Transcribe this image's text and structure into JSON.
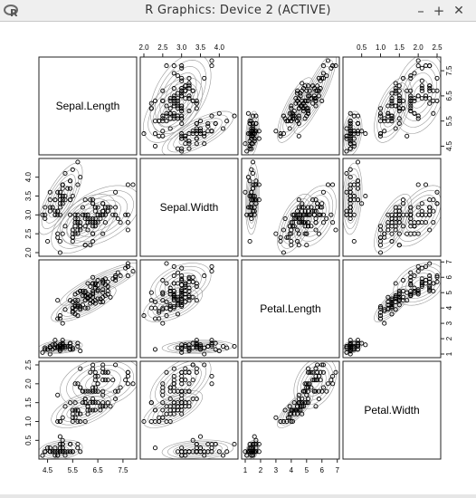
{
  "window": {
    "title": "R Graphics: Device 2 (ACTIVE)",
    "app_icon": "r-logo-icon",
    "buttons": {
      "minimize": "–",
      "maximize": "+",
      "close": "✕"
    }
  },
  "chart_data": {
    "type": "scatter",
    "plot_kind": "scatterplot matrix with bivariate density contours",
    "variables": [
      "Sepal.Length",
      "Sepal.Width",
      "Petal.Length",
      "Petal.Width"
    ],
    "ranges": {
      "Sepal.Length": [
        4.3,
        7.9
      ],
      "Sepal.Width": [
        2.0,
        4.4
      ],
      "Petal.Length": [
        1.0,
        6.9
      ],
      "Petal.Width": [
        0.1,
        2.5
      ]
    },
    "ticks": {
      "Sepal.Length": {
        "top": [
          {
            "v": 4.5,
            "t": "4.5"
          },
          {
            "v": 5.5,
            "t": "5.5"
          },
          {
            "v": 6.5,
            "t": "6.5"
          },
          {
            "v": 7.5,
            "t": "7.5"
          }
        ],
        "bottom": [
          {
            "v": 4.5,
            "t": "4.5"
          },
          {
            "v": 5.5,
            "t": "5.5"
          },
          {
            "v": 6.5,
            "t": "6.5"
          },
          {
            "v": 7.5,
            "t": "7.5"
          }
        ]
      },
      "Sepal.Width": {
        "top": [
          {
            "v": 2.0,
            "t": "2.0"
          },
          {
            "v": 2.5,
            "t": "2.5"
          },
          {
            "v": 3.0,
            "t": "3.0"
          },
          {
            "v": 3.5,
            "t": "3.5"
          },
          {
            "v": 4.0,
            "t": "4.0"
          }
        ],
        "left": [
          {
            "v": 2.0,
            "t": "2.0"
          },
          {
            "v": 2.5,
            "t": "2.5"
          },
          {
            "v": 3.0,
            "t": "3.0"
          },
          {
            "v": 3.5,
            "t": "3.5"
          },
          {
            "v": 4.0,
            "t": "4.0"
          }
        ]
      },
      "Petal.Length": {
        "bottom": [
          {
            "v": 1,
            "t": "1"
          },
          {
            "v": 2,
            "t": "2"
          },
          {
            "v": 3,
            "t": "3"
          },
          {
            "v": 4,
            "t": "4"
          },
          {
            "v": 5,
            "t": "5"
          },
          {
            "v": 6,
            "t": "6"
          },
          {
            "v": 7,
            "t": "7"
          }
        ],
        "right": [
          {
            "v": 1,
            "t": "1"
          },
          {
            "v": 2,
            "t": "2"
          },
          {
            "v": 3,
            "t": "3"
          },
          {
            "v": 4,
            "t": "4"
          },
          {
            "v": 5,
            "t": "5"
          },
          {
            "v": 6,
            "t": "6"
          },
          {
            "v": 7,
            "t": "7"
          }
        ]
      },
      "Petal.Width": {
        "top": [
          {
            "v": 0.5,
            "t": "0.5"
          },
          {
            "v": 1.0,
            "t": "1.0"
          },
          {
            "v": 1.5,
            "t": "1.5"
          },
          {
            "v": 2.0,
            "t": "2.0"
          },
          {
            "v": 2.5,
            "t": "2.5"
          }
        ],
        "left": [
          {
            "v": 0.5,
            "t": "0.5"
          },
          {
            "v": 1.0,
            "t": "1.0"
          },
          {
            "v": 1.5,
            "t": "1.5"
          },
          {
            "v": 2.0,
            "t": "2.0"
          },
          {
            "v": 2.5,
            "t": "2.5"
          }
        ]
      }
    },
    "extra_ticks": {
      "Sepal.Length": {
        "right": [
          {
            "v": 4.5,
            "t": "4.5"
          },
          {
            "v": 5.5,
            "t": "5.5"
          },
          {
            "v": 6.5,
            "t": "6.5"
          },
          {
            "v": 7.5,
            "t": "7.5"
          }
        ]
      }
    },
    "groups": [
      {
        "sl": [
          5.1,
          4.9,
          4.7,
          4.6,
          5.0,
          5.4,
          4.6,
          5.0,
          4.4,
          4.9,
          5.4,
          4.8,
          4.8,
          4.3,
          5.8,
          5.7,
          5.4,
          5.1,
          5.7,
          5.1,
          5.4,
          5.1,
          4.6,
          5.1,
          4.8,
          5.0,
          5.0,
          5.2,
          5.2,
          4.7,
          4.8,
          5.4,
          5.2,
          5.5,
          4.9,
          5.0,
          5.5,
          4.9,
          4.4,
          5.1,
          5.0,
          4.5,
          4.4,
          5.0,
          5.1,
          4.8,
          5.1,
          4.6,
          5.3,
          5.0
        ],
        "sw": [
          3.5,
          3.0,
          3.2,
          3.1,
          3.6,
          3.9,
          3.4,
          3.4,
          2.9,
          3.1,
          3.7,
          3.4,
          3.0,
          3.0,
          4.0,
          4.4,
          3.9,
          3.5,
          3.8,
          3.8,
          3.4,
          3.7,
          3.6,
          3.3,
          3.4,
          3.0,
          3.4,
          3.5,
          3.4,
          3.2,
          3.1,
          3.4,
          4.1,
          4.2,
          3.1,
          3.2,
          3.5,
          3.6,
          3.0,
          3.4,
          3.5,
          2.3,
          3.2,
          3.5,
          3.8,
          3.0,
          3.8,
          3.2,
          3.7,
          3.3
        ],
        "pl": [
          1.4,
          1.4,
          1.3,
          1.5,
          1.4,
          1.7,
          1.4,
          1.5,
          1.4,
          1.5,
          1.5,
          1.6,
          1.4,
          1.1,
          1.2,
          1.5,
          1.3,
          1.4,
          1.7,
          1.5,
          1.7,
          1.5,
          1.0,
          1.7,
          1.9,
          1.6,
          1.6,
          1.5,
          1.4,
          1.6,
          1.6,
          1.5,
          1.5,
          1.4,
          1.5,
          1.2,
          1.3,
          1.4,
          1.3,
          1.5,
          1.3,
          1.3,
          1.3,
          1.6,
          1.9,
          1.4,
          1.6,
          1.4,
          1.5,
          1.4
        ],
        "pw": [
          0.2,
          0.2,
          0.2,
          0.2,
          0.2,
          0.4,
          0.3,
          0.2,
          0.2,
          0.1,
          0.2,
          0.2,
          0.1,
          0.1,
          0.2,
          0.4,
          0.4,
          0.3,
          0.3,
          0.3,
          0.2,
          0.4,
          0.2,
          0.5,
          0.2,
          0.2,
          0.4,
          0.2,
          0.2,
          0.2,
          0.2,
          0.4,
          0.1,
          0.2,
          0.2,
          0.2,
          0.2,
          0.1,
          0.2,
          0.2,
          0.3,
          0.3,
          0.2,
          0.6,
          0.4,
          0.3,
          0.2,
          0.2,
          0.2,
          0.2
        ]
      },
      {
        "sl": [
          7.0,
          6.4,
          6.9,
          5.5,
          6.5,
          5.7,
          6.3,
          4.9,
          6.6,
          5.2,
          5.0,
          5.9,
          6.0,
          6.1,
          5.6,
          6.7,
          5.6,
          5.8,
          6.2,
          5.6,
          5.9,
          6.1,
          6.3,
          6.1,
          6.4,
          6.6,
          6.8,
          6.7,
          6.0,
          5.7,
          5.5,
          5.5,
          5.8,
          6.0,
          5.4,
          6.0,
          6.7,
          6.3,
          5.6,
          5.5,
          5.5,
          6.1,
          5.8,
          5.0,
          5.6,
          5.7,
          5.7,
          6.2,
          5.1,
          5.7
        ],
        "sw": [
          3.2,
          3.2,
          3.1,
          2.3,
          2.8,
          2.8,
          3.3,
          2.4,
          2.9,
          2.7,
          2.0,
          3.0,
          2.2,
          2.9,
          2.9,
          3.1,
          3.0,
          2.7,
          2.2,
          2.5,
          3.2,
          2.8,
          2.5,
          2.8,
          2.9,
          3.0,
          2.8,
          3.0,
          2.9,
          2.6,
          2.4,
          2.4,
          2.7,
          2.7,
          3.0,
          3.4,
          3.1,
          2.3,
          3.0,
          2.5,
          2.6,
          3.0,
          2.6,
          2.3,
          2.7,
          3.0,
          2.9,
          2.9,
          2.5,
          2.8
        ],
        "pl": [
          4.7,
          4.5,
          4.9,
          4.0,
          4.6,
          4.5,
          4.7,
          3.3,
          4.6,
          3.9,
          3.5,
          4.2,
          4.0,
          4.7,
          3.6,
          4.4,
          4.5,
          4.1,
          4.5,
          3.9,
          4.8,
          4.0,
          4.9,
          4.7,
          4.3,
          4.4,
          4.8,
          5.0,
          4.5,
          3.5,
          3.8,
          3.7,
          3.9,
          5.1,
          4.5,
          4.5,
          4.7,
          4.4,
          4.1,
          4.0,
          4.4,
          4.6,
          4.0,
          3.3,
          4.2,
          4.2,
          4.2,
          4.3,
          3.0,
          4.1
        ],
        "pw": [
          1.4,
          1.5,
          1.5,
          1.3,
          1.5,
          1.3,
          1.6,
          1.0,
          1.3,
          1.4,
          1.0,
          1.5,
          1.0,
          1.4,
          1.3,
          1.4,
          1.5,
          1.0,
          1.5,
          1.1,
          1.8,
          1.3,
          1.5,
          1.2,
          1.3,
          1.4,
          1.4,
          1.7,
          1.5,
          1.0,
          1.1,
          1.0,
          1.2,
          1.6,
          1.5,
          1.6,
          1.5,
          1.3,
          1.3,
          1.3,
          1.2,
          1.4,
          1.2,
          1.0,
          1.3,
          1.2,
          1.3,
          1.3,
          1.1,
          1.3
        ]
      },
      {
        "sl": [
          6.3,
          5.8,
          7.1,
          6.3,
          6.5,
          7.6,
          4.9,
          7.3,
          6.7,
          7.2,
          6.5,
          6.4,
          6.8,
          5.7,
          5.8,
          6.4,
          6.5,
          7.7,
          7.7,
          6.0,
          6.9,
          5.6,
          7.7,
          6.3,
          6.7,
          7.2,
          6.2,
          6.1,
          6.4,
          7.2,
          7.4,
          7.9,
          6.4,
          6.3,
          6.1,
          7.7,
          6.3,
          6.4,
          6.0,
          6.9,
          6.7,
          6.9,
          5.8,
          6.8,
          6.7,
          6.7,
          6.3,
          6.5,
          6.2,
          5.9
        ],
        "sw": [
          3.3,
          2.7,
          3.0,
          2.9,
          3.0,
          3.0,
          2.5,
          2.9,
          2.5,
          3.6,
          3.2,
          2.7,
          3.0,
          2.5,
          2.8,
          3.2,
          3.0,
          3.8,
          2.6,
          2.2,
          3.2,
          2.8,
          2.8,
          2.7,
          3.3,
          3.2,
          2.8,
          3.0,
          2.8,
          3.0,
          2.8,
          3.8,
          2.8,
          2.8,
          2.6,
          3.0,
          3.4,
          3.1,
          3.0,
          3.1,
          3.1,
          3.1,
          2.7,
          3.2,
          3.3,
          3.0,
          2.5,
          3.0,
          3.4,
          3.0
        ],
        "pl": [
          6.0,
          5.1,
          5.9,
          5.6,
          5.8,
          6.6,
          4.5,
          6.3,
          5.8,
          6.1,
          5.1,
          5.3,
          5.5,
          5.0,
          5.1,
          5.3,
          5.5,
          6.7,
          6.9,
          5.0,
          5.7,
          4.9,
          6.7,
          4.9,
          5.7,
          6.0,
          4.8,
          4.9,
          5.6,
          5.8,
          6.1,
          6.4,
          5.6,
          5.1,
          5.6,
          6.1,
          5.6,
          5.5,
          4.8,
          5.4,
          5.6,
          5.1,
          5.1,
          5.9,
          5.7,
          5.2,
          5.0,
          5.2,
          5.4,
          5.1
        ],
        "pw": [
          2.5,
          1.9,
          2.1,
          1.8,
          2.2,
          2.1,
          1.7,
          1.8,
          1.8,
          2.5,
          2.0,
          1.9,
          2.1,
          2.0,
          2.4,
          2.3,
          1.8,
          2.2,
          2.3,
          1.5,
          2.3,
          2.0,
          2.0,
          1.8,
          2.1,
          1.8,
          1.8,
          1.8,
          2.1,
          1.6,
          1.9,
          2.0,
          2.2,
          1.5,
          1.4,
          2.3,
          2.4,
          1.8,
          1.8,
          2.1,
          2.4,
          2.3,
          1.9,
          2.3,
          2.5,
          2.3,
          1.9,
          2.0,
          2.3,
          1.8
        ]
      }
    ],
    "point_style": "open-circle",
    "contours": "grey density ellipses per group",
    "grid": false
  }
}
